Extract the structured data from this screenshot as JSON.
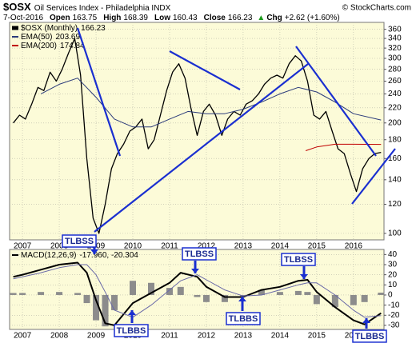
{
  "chart_data": [
    {
      "type": "line",
      "symbol": "$OSX",
      "title": "Oil Services Index - Philadelphia INDX",
      "source": "© StockCharts.com",
      "subtitle": "7-Oct-2016",
      "quote": [
        {
          "label": "Open",
          "value": 163.75
        },
        {
          "label": "High",
          "value": 168.39
        },
        {
          "label": "Low",
          "value": 160.43
        },
        {
          "label": "Close",
          "value": 166.23
        },
        {
          "label": "Chg",
          "value": "+2.62 (+1.60%)"
        }
      ],
      "log_scale": true,
      "grid": true,
      "xlim": [
        2006.65,
        2016.83
      ],
      "xticks": [
        2007,
        2008,
        2009,
        2010,
        2011,
        2012,
        2013,
        2014,
        2015,
        2016
      ],
      "ylim": [
        96,
        376
      ],
      "yticks": [
        100,
        120,
        140,
        160,
        180,
        200,
        220,
        240,
        260,
        280,
        300,
        320,
        340,
        360
      ],
      "series": [
        {
          "name": "$OSX (Monthly)",
          "last_value": 166.23,
          "color": "#000000",
          "x": [
            2006.75,
            2006.92,
            2007.08,
            2007.25,
            2007.42,
            2007.58,
            2007.75,
            2007.92,
            2008.08,
            2008.25,
            2008.42,
            2008.58,
            2008.75,
            2008.92,
            2009.08,
            2009.25,
            2009.42,
            2009.58,
            2009.75,
            2009.92,
            2010.08,
            2010.25,
            2010.42,
            2010.58,
            2010.75,
            2010.92,
            2011.08,
            2011.25,
            2011.42,
            2011.58,
            2011.75,
            2011.92,
            2012.08,
            2012.25,
            2012.42,
            2012.58,
            2012.75,
            2012.92,
            2013.08,
            2013.25,
            2013.42,
            2013.58,
            2013.75,
            2013.92,
            2014.08,
            2014.25,
            2014.42,
            2014.58,
            2014.75,
            2014.92,
            2015.08,
            2015.25,
            2015.42,
            2015.58,
            2015.75,
            2015.92,
            2016.08,
            2016.25,
            2016.42,
            2016.58,
            2016.75
          ],
          "values": [
            200,
            210,
            205,
            225,
            250,
            245,
            275,
            260,
            280,
            310,
            340,
            270,
            160,
            110,
            100,
            120,
            150,
            165,
            175,
            190,
            195,
            205,
            170,
            180,
            210,
            245,
            275,
            290,
            265,
            220,
            185,
            215,
            225,
            210,
            185,
            205,
            215,
            210,
            225,
            230,
            240,
            255,
            265,
            270,
            265,
            290,
            305,
            295,
            260,
            210,
            205,
            215,
            190,
            170,
            165,
            145,
            130,
            150,
            160,
            165,
            166.23
          ]
        },
        {
          "name": "EMA(50)",
          "last_value": 203.69,
          "color": "#2a3a7a",
          "x": [
            2007.5,
            2008.0,
            2008.5,
            2009.0,
            2009.5,
            2010.0,
            2010.5,
            2011.0,
            2011.5,
            2012.0,
            2012.5,
            2013.0,
            2013.5,
            2014.0,
            2014.5,
            2015.0,
            2015.5,
            2016.0,
            2016.75
          ],
          "values": [
            240,
            255,
            265,
            235,
            205,
            195,
            195,
            205,
            215,
            212,
            212,
            218,
            228,
            240,
            250,
            243,
            228,
            212,
            203.69
          ]
        },
        {
          "name": "EMA(200)",
          "last_value": 174.84,
          "color": "#c00000",
          "x": [
            2014.7,
            2015.0,
            2015.5,
            2016.0,
            2016.75
          ],
          "values": [
            168,
            172,
            175,
            175,
            174.84
          ]
        }
      ],
      "annotations": [
        "TLBSS"
      ]
    },
    {
      "type": "line",
      "grid": true,
      "legend_value": "-17.960, -20.304",
      "xlim": [
        2006.65,
        2016.83
      ],
      "xticks": [
        2007,
        2008,
        2009,
        2010,
        2011,
        2012,
        2013,
        2014,
        2015,
        2016
      ],
      "ylim": [
        -34,
        45
      ],
      "yticks": [
        40,
        30,
        20,
        10,
        0,
        -10,
        -20,
        -30
      ],
      "series": [
        {
          "type": "bar",
          "color": "#8c8c8c",
          "x": [
            2006.75,
            2007.0,
            2007.5,
            2008.0,
            2008.5,
            2008.75,
            2009.0,
            2009.25,
            2009.5,
            2010.0,
            2010.5,
            2011.0,
            2011.3,
            2011.75,
            2012.0,
            2012.5,
            2013.0,
            2013.5,
            2014.0,
            2014.5,
            2014.75,
            2015.0,
            2015.5,
            2016.0,
            2016.3,
            2016.75
          ],
          "values": [
            2,
            2,
            3,
            3,
            2,
            -8,
            -25,
            -31,
            -15,
            14,
            12,
            7,
            8,
            -2,
            -7,
            -7,
            -1,
            5,
            3,
            4,
            3,
            -9,
            -12,
            -10,
            -7,
            2.34
          ]
        },
        {
          "name": "MACD(12,26,9)",
          "color": "#000000",
          "x": [
            2006.75,
            2007.0,
            2007.5,
            2008.0,
            2008.5,
            2008.75,
            2009.0,
            2009.25,
            2009.5,
            2010.0,
            2010.5,
            2011.0,
            2011.3,
            2011.75,
            2012.0,
            2012.5,
            2013.0,
            2013.5,
            2014.0,
            2014.5,
            2014.75,
            2015.0,
            2015.5,
            2016.0,
            2016.3,
            2016.75
          ],
          "values": [
            18,
            20,
            25,
            30,
            32,
            22,
            -5,
            -28,
            -30,
            -8,
            2,
            12,
            22,
            18,
            8,
            -2,
            -2,
            5,
            8,
            14,
            15,
            3,
            -12,
            -25,
            -29,
            -17.96
          ]
        },
        {
          "type": "signal",
          "color": "#6a6aa8",
          "x": [
            2006.75,
            2007.0,
            2007.5,
            2008.0,
            2008.5,
            2008.75,
            2009.0,
            2009.25,
            2009.5,
            2010.0,
            2010.5,
            2011.0,
            2011.3,
            2011.75,
            2012.0,
            2012.5,
            2013.0,
            2013.5,
            2014.0,
            2014.5,
            2014.75,
            2015.0,
            2015.5,
            2016.0,
            2016.3,
            2016.75
          ],
          "values": [
            16,
            18,
            22,
            27,
            30,
            30,
            20,
            3,
            -15,
            -22,
            -10,
            5,
            14,
            20,
            15,
            5,
            -1,
            0,
            5,
            10,
            12,
            12,
            0,
            -15,
            -22,
            -20.304
          ]
        }
      ],
      "annotations": [
        "TLBSS",
        "TLBBS",
        "TLBBS",
        "TLBSS",
        "TLBBS"
      ]
    }
  ]
}
